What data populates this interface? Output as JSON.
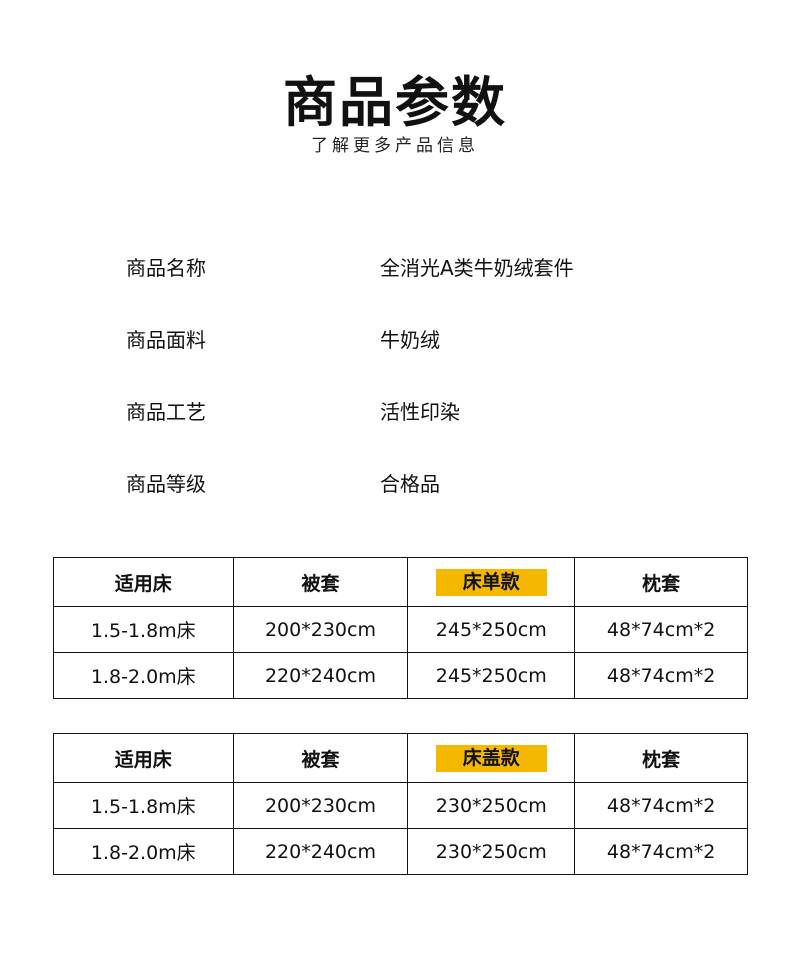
{
  "header": {
    "title": "商品参数",
    "subtitle": "了解更多产品信息"
  },
  "params": [
    {
      "label": "商品名称",
      "value": "全消光A类牛奶绒套件"
    },
    {
      "label": "商品面料",
      "value": "牛奶绒"
    },
    {
      "label": "商品工艺",
      "value": "活性印染"
    },
    {
      "label": "商品等级",
      "value": "合格品"
    }
  ],
  "highlight_color": "#f4b800",
  "tables": [
    {
      "headers": [
        "适用床",
        "被套",
        "床单款",
        "枕套"
      ],
      "rows": [
        [
          "1.5-1.8m床",
          "200*230cm",
          "245*250cm",
          "48*74cm*2"
        ],
        [
          "1.8-2.0m床",
          "220*240cm",
          "245*250cm",
          "48*74cm*2"
        ]
      ]
    },
    {
      "headers": [
        "适用床",
        "被套",
        "床盖款",
        "枕套"
      ],
      "rows": [
        [
          "1.5-1.8m床",
          "200*230cm",
          "230*250cm",
          "48*74cm*2"
        ],
        [
          "1.8-2.0m床",
          "220*240cm",
          "230*250cm",
          "48*74cm*2"
        ]
      ]
    }
  ]
}
